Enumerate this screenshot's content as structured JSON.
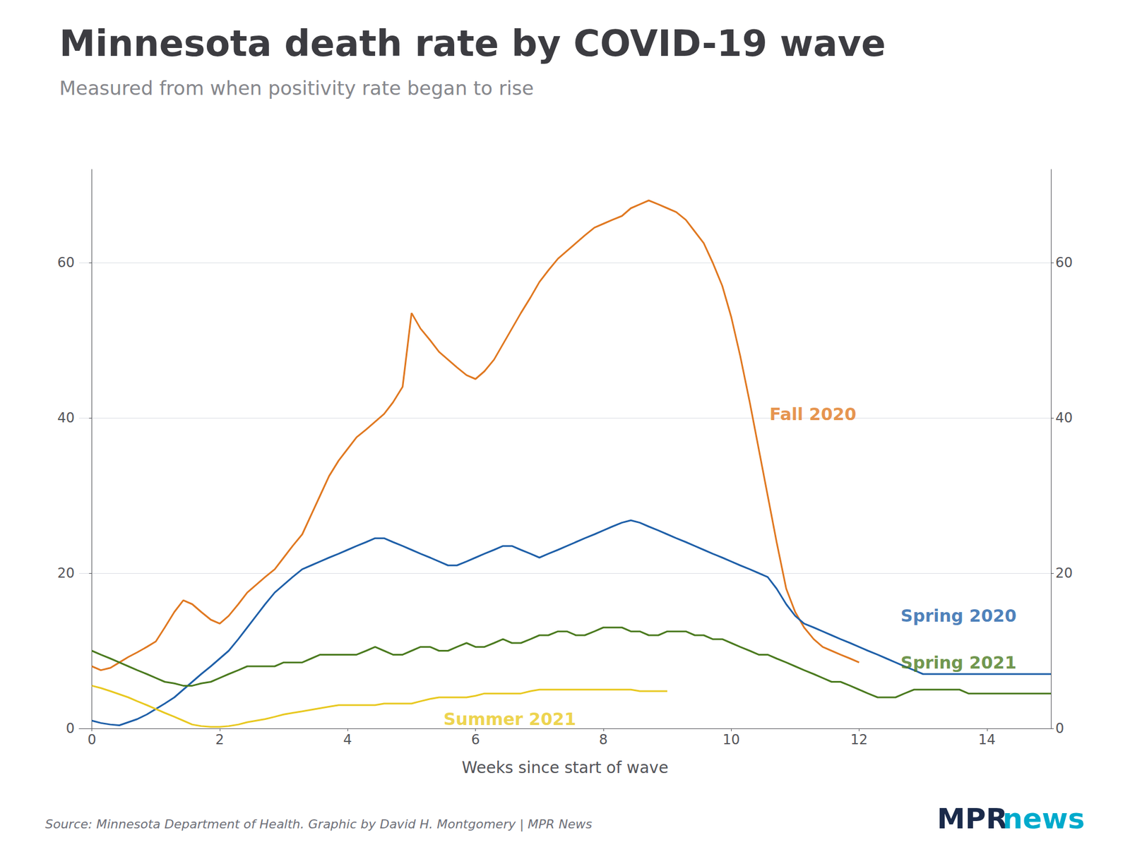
{
  "chart_data": {
    "type": "line",
    "title": "Minnesota death rate by COVID-19 wave",
    "subtitle": "Measured from when positivity rate began to rise",
    "xlabel": "Weeks since start of wave",
    "source": "Source: Minnesota Department of Health. Graphic by David H. Montgomery | MPR News",
    "logo": [
      {
        "text": "MPR",
        "color": "#1a2a4a"
      },
      {
        "text": "news",
        "color": "#00aacc"
      }
    ],
    "xlim": [
      -0.2,
      15
    ],
    "xticks": [
      0,
      2,
      4,
      6,
      8,
      10,
      12,
      14
    ],
    "ylim": [
      0,
      72
    ],
    "yticks": [
      0,
      20,
      40,
      60
    ],
    "y2lim": [
      0,
      72
    ],
    "y2ticks": [
      0,
      20,
      40,
      60
    ],
    "grid": true,
    "series": [
      {
        "name": "Fall 2020",
        "color": "#e07820",
        "x": [
          0.0,
          0.14,
          0.29,
          0.43,
          0.57,
          0.71,
          0.86,
          1.0,
          1.14,
          1.29,
          1.43,
          1.57,
          1.71,
          1.86,
          2.0,
          2.14,
          2.29,
          2.43,
          2.57,
          2.71,
          2.86,
          3.0,
          3.14,
          3.29,
          3.43,
          3.57,
          3.71,
          3.86,
          4.0,
          4.14,
          4.29,
          4.43,
          4.57,
          4.71,
          4.86,
          5.0,
          5.14,
          5.29,
          5.43,
          5.57,
          5.71,
          5.86,
          6.0,
          6.14,
          6.29,
          6.43,
          6.57,
          6.71,
          6.86,
          7.0,
          7.14,
          7.29,
          7.43,
          7.57,
          7.71,
          7.86,
          8.0,
          8.14,
          8.29,
          8.43,
          8.57,
          8.71,
          8.86,
          9.0,
          9.14,
          9.29,
          9.43,
          9.57,
          9.71,
          9.86,
          10.0,
          10.14,
          10.29,
          10.43,
          10.57,
          10.71,
          10.86,
          11.0,
          11.14,
          11.29,
          11.43,
          11.57,
          11.71,
          11.86,
          12.0
        ],
        "values": [
          8.0,
          7.5,
          7.8,
          8.5,
          9.2,
          9.8,
          10.5,
          11.2,
          13.0,
          15.0,
          16.5,
          16.0,
          15.0,
          14.0,
          13.5,
          14.5,
          16.0,
          17.5,
          18.5,
          19.5,
          20.5,
          22.0,
          23.5,
          25.0,
          27.5,
          30.0,
          32.5,
          34.5,
          36.0,
          37.5,
          38.5,
          39.5,
          40.5,
          42.0,
          44.0,
          53.5,
          51.5,
          50.0,
          48.5,
          47.5,
          46.5,
          45.5,
          45.0,
          46.0,
          47.5,
          49.5,
          51.5,
          53.5,
          55.5,
          57.5,
          59.0,
          60.5,
          61.5,
          62.5,
          63.5,
          64.5,
          65.0,
          65.5,
          66.0,
          67.0,
          67.5,
          68.0,
          67.5,
          67.0,
          66.5,
          65.5,
          64.0,
          62.5,
          60.0,
          57.0,
          53.0,
          48.0,
          42.0,
          36.0,
          30.0,
          24.0,
          18.0,
          15.0,
          13.0,
          11.5,
          10.5,
          10.0,
          9.5,
          9.0,
          8.5
        ]
      },
      {
        "name": "Spring 2020",
        "color": "#1e5fa8",
        "x": [
          0.0,
          0.14,
          0.29,
          0.43,
          0.57,
          0.71,
          0.86,
          1.0,
          1.14,
          1.29,
          1.43,
          1.57,
          1.71,
          1.86,
          2.0,
          2.14,
          2.29,
          2.43,
          2.57,
          2.71,
          2.86,
          3.0,
          3.14,
          3.29,
          3.43,
          3.57,
          3.71,
          3.86,
          4.0,
          4.14,
          4.29,
          4.43,
          4.57,
          4.71,
          4.86,
          5.0,
          5.14,
          5.29,
          5.43,
          5.57,
          5.71,
          5.86,
          6.0,
          6.14,
          6.29,
          6.43,
          6.57,
          6.71,
          6.86,
          7.0,
          7.14,
          7.29,
          7.43,
          7.57,
          7.71,
          7.86,
          8.0,
          8.14,
          8.29,
          8.43,
          8.57,
          8.71,
          8.86,
          9.0,
          9.14,
          9.29,
          9.43,
          9.57,
          9.71,
          9.86,
          10.0,
          10.14,
          10.29,
          10.43,
          10.57,
          10.71,
          10.86,
          11.0,
          11.14,
          11.29,
          11.43,
          11.57,
          11.71,
          11.86,
          12.0,
          12.14,
          12.29,
          12.43,
          12.57,
          12.71,
          12.86,
          13.0,
          13.14,
          13.29,
          13.43,
          13.57,
          13.71,
          13.86,
          14.0,
          14.14,
          14.29,
          14.43,
          14.57,
          14.71,
          14.86,
          15.0
        ],
        "values": [
          1.0,
          0.7,
          0.5,
          0.4,
          0.8,
          1.2,
          1.8,
          2.5,
          3.2,
          4.0,
          5.0,
          6.0,
          7.0,
          8.0,
          9.0,
          10.0,
          11.5,
          13.0,
          14.5,
          16.0,
          17.5,
          18.5,
          19.5,
          20.5,
          21.0,
          21.5,
          22.0,
          22.5,
          23.0,
          23.5,
          24.0,
          24.5,
          24.5,
          24.0,
          23.5,
          23.0,
          22.5,
          22.0,
          21.5,
          21.0,
          21.0,
          21.5,
          22.0,
          22.5,
          23.0,
          23.5,
          23.5,
          23.0,
          22.5,
          22.0,
          22.5,
          23.0,
          23.5,
          24.0,
          24.5,
          25.0,
          25.5,
          26.0,
          26.5,
          26.8,
          26.5,
          26.0,
          25.5,
          25.0,
          24.5,
          24.0,
          23.5,
          23.0,
          22.5,
          22.0,
          21.5,
          21.0,
          20.5,
          20.0,
          19.5,
          18.0,
          16.0,
          14.5,
          13.5,
          13.0,
          12.5,
          12.0,
          11.5,
          11.0,
          10.5,
          10.0,
          9.5,
          9.0,
          8.5,
          8.0,
          7.5,
          7.0,
          7.0,
          7.0,
          7.0,
          7.0,
          7.0,
          7.0,
          7.0,
          7.0,
          7.0,
          7.0,
          7.0,
          7.0,
          7.0,
          7.0
        ]
      },
      {
        "name": "Spring 2021",
        "color": "#4a7a1e",
        "x": [
          0.0,
          0.14,
          0.29,
          0.43,
          0.57,
          0.71,
          0.86,
          1.0,
          1.14,
          1.29,
          1.43,
          1.57,
          1.71,
          1.86,
          2.0,
          2.14,
          2.29,
          2.43,
          2.57,
          2.71,
          2.86,
          3.0,
          3.14,
          3.29,
          3.43,
          3.57,
          3.71,
          3.86,
          4.0,
          4.14,
          4.29,
          4.43,
          4.57,
          4.71,
          4.86,
          5.0,
          5.14,
          5.29,
          5.43,
          5.57,
          5.71,
          5.86,
          6.0,
          6.14,
          6.29,
          6.43,
          6.57,
          6.71,
          6.86,
          7.0,
          7.14,
          7.29,
          7.43,
          7.57,
          7.71,
          7.86,
          8.0,
          8.14,
          8.29,
          8.43,
          8.57,
          8.71,
          8.86,
          9.0,
          9.14,
          9.29,
          9.43,
          9.57,
          9.71,
          9.86,
          10.0,
          10.14,
          10.29,
          10.43,
          10.57,
          10.71,
          10.86,
          11.0,
          11.14,
          11.29,
          11.43,
          11.57,
          11.71,
          11.86,
          12.0,
          12.14,
          12.29,
          12.43,
          12.57,
          12.71,
          12.86,
          13.0,
          13.14,
          13.29,
          13.43,
          13.57,
          13.71,
          13.86,
          14.0,
          14.14,
          14.29,
          14.43,
          14.57,
          14.71,
          14.86,
          15.0
        ],
        "values": [
          10.0,
          9.5,
          9.0,
          8.5,
          8.0,
          7.5,
          7.0,
          6.5,
          6.0,
          5.8,
          5.5,
          5.5,
          5.8,
          6.0,
          6.5,
          7.0,
          7.5,
          8.0,
          8.0,
          8.0,
          8.0,
          8.5,
          8.5,
          8.5,
          9.0,
          9.5,
          9.5,
          9.5,
          9.5,
          9.5,
          10.0,
          10.5,
          10.0,
          9.5,
          9.5,
          10.0,
          10.5,
          10.5,
          10.0,
          10.0,
          10.5,
          11.0,
          10.5,
          10.5,
          11.0,
          11.5,
          11.0,
          11.0,
          11.5,
          12.0,
          12.0,
          12.5,
          12.5,
          12.0,
          12.0,
          12.5,
          13.0,
          13.0,
          13.0,
          12.5,
          12.5,
          12.0,
          12.0,
          12.5,
          12.5,
          12.5,
          12.0,
          12.0,
          11.5,
          11.5,
          11.0,
          10.5,
          10.0,
          9.5,
          9.5,
          9.0,
          8.5,
          8.0,
          7.5,
          7.0,
          6.5,
          6.0,
          6.0,
          5.5,
          5.0,
          4.5,
          4.0,
          4.0,
          4.0,
          4.5,
          5.0,
          5.0,
          5.0,
          5.0,
          5.0,
          5.0,
          4.5,
          4.5,
          4.5,
          4.5,
          4.5,
          4.5,
          4.5,
          4.5,
          4.5,
          4.5
        ]
      },
      {
        "name": "Summer 2021",
        "color": "#e8c820",
        "x": [
          0.0,
          0.14,
          0.29,
          0.43,
          0.57,
          0.71,
          0.86,
          1.0,
          1.14,
          1.29,
          1.43,
          1.57,
          1.71,
          1.86,
          2.0,
          2.14,
          2.29,
          2.43,
          2.57,
          2.71,
          2.86,
          3.0,
          3.14,
          3.29,
          3.43,
          3.57,
          3.71,
          3.86,
          4.0,
          4.14,
          4.29,
          4.43,
          4.57,
          4.71,
          4.86,
          5.0,
          5.14,
          5.29,
          5.43,
          5.57,
          5.71,
          5.86,
          6.0,
          6.14,
          6.29,
          6.43,
          6.57,
          6.71,
          6.86,
          7.0,
          7.14,
          7.29,
          7.43,
          7.57,
          7.71,
          7.86,
          8.0,
          8.14,
          8.29,
          8.43,
          8.57,
          8.71,
          8.86,
          9.0
        ],
        "values": [
          5.5,
          5.2,
          4.8,
          4.4,
          4.0,
          3.5,
          3.0,
          2.5,
          2.0,
          1.5,
          1.0,
          0.5,
          0.3,
          0.2,
          0.2,
          0.3,
          0.5,
          0.8,
          1.0,
          1.2,
          1.5,
          1.8,
          2.0,
          2.2,
          2.4,
          2.6,
          2.8,
          3.0,
          3.0,
          3.0,
          3.0,
          3.0,
          3.2,
          3.2,
          3.2,
          3.2,
          3.5,
          3.8,
          4.0,
          4.0,
          4.0,
          4.0,
          4.2,
          4.5,
          4.5,
          4.5,
          4.5,
          4.5,
          4.8,
          5.0,
          5.0,
          5.0,
          5.0,
          5.0,
          5.0,
          5.0,
          5.0,
          5.0,
          5.0,
          5.0,
          4.8,
          4.8,
          4.8,
          4.8
        ]
      }
    ],
    "annotations": [
      {
        "x": 10.6,
        "y": 40.5,
        "text": "Fall 2020",
        "color": "#e07820"
      },
      {
        "x": 12.65,
        "y": 14.5,
        "text": "Spring 2020",
        "color": "#1e5fa8"
      },
      {
        "x": 12.65,
        "y": 8.5,
        "text": "Spring 2021",
        "color": "#4a7a1e"
      },
      {
        "x": 5.5,
        "y": 1.2,
        "text": "Summer 2021",
        "color": "#e8c820"
      }
    ]
  }
}
